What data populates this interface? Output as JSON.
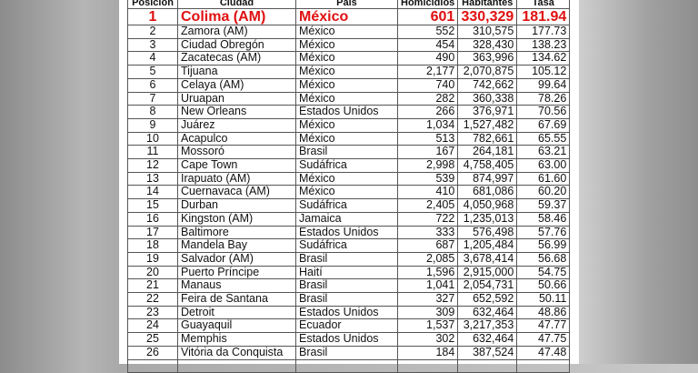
{
  "table": {
    "headers": [
      "Posición",
      "Ciudad",
      "País",
      "Homicidios",
      "Habitantes",
      "Tasa"
    ],
    "highlight_color": "#e01010",
    "rows": [
      [
        "1",
        "Colima (AM)",
        "México",
        "601",
        "330,329",
        "181.94"
      ],
      [
        "2",
        "Zamora (AM)",
        "México",
        "552",
        "310,575",
        "177.73"
      ],
      [
        "3",
        "Ciudad Obregón",
        "México",
        "454",
        "328,430",
        "138.23"
      ],
      [
        "4",
        "Zacatecas (AM)",
        "México",
        "490",
        "363,996",
        "134.62"
      ],
      [
        "5",
        "Tijuana",
        "México",
        "2,177",
        "2,070,875",
        "105.12"
      ],
      [
        "6",
        "Celaya (AM)",
        "México",
        "740",
        "742,662",
        "99.64"
      ],
      [
        "7",
        "Uruapan",
        "México",
        "282",
        "360,338",
        "78.26"
      ],
      [
        "8",
        "New Orleans",
        "Estados Unidos",
        "266",
        "376,971",
        "70.56"
      ],
      [
        "9",
        "Juárez",
        "México",
        "1,034",
        "1,527,482",
        "67.69"
      ],
      [
        "10",
        "Acapulco",
        "México",
        "513",
        "782,661",
        "65.55"
      ],
      [
        "11",
        "Mossoró",
        "Brasil",
        "167",
        "264,181",
        "63.21"
      ],
      [
        "12",
        "Cape Town",
        "Sudáfrica",
        "2,998",
        "4,758,405",
        "63.00"
      ],
      [
        "13",
        "Irapuato (AM)",
        "México",
        "539",
        "874,997",
        "61.60"
      ],
      [
        "14",
        "Cuernavaca (AM)",
        "México",
        "410",
        "681,086",
        "60.20"
      ],
      [
        "15",
        "Durban",
        "Sudáfrica",
        "2,405",
        "4,050,968",
        "59.37"
      ],
      [
        "16",
        "Kingston (AM)",
        "Jamaica",
        "722",
        "1,235,013",
        "58.46"
      ],
      [
        "17",
        "Baltimore",
        "Estados Unidos",
        "333",
        "576,498",
        "57.76"
      ],
      [
        "18",
        "Mandela Bay",
        "Sudáfrica",
        "687",
        "1,205,484",
        "56.99"
      ],
      [
        "19",
        "Salvador (AM)",
        "Brasil",
        "2,085",
        "3,678,414",
        "56.68"
      ],
      [
        "20",
        "Puerto Príncipe",
        "Haití",
        "1,596",
        "2,915,000",
        "54.75"
      ],
      [
        "21",
        "Manaus",
        "Brasil",
        "1,041",
        "2,054,731",
        "50.66"
      ],
      [
        "22",
        "Feira de Santana",
        "Brasil",
        "327",
        "652,592",
        "50.11"
      ],
      [
        "23",
        "Detroit",
        "Estados Unidos",
        "309",
        "632,464",
        "48.86"
      ],
      [
        "24",
        "Guayaquil",
        "Ecuador",
        "1,537",
        "3,217,353",
        "47.77"
      ],
      [
        "25",
        "Memphis",
        "Estados Unidos",
        "302",
        "632,464",
        "47.75"
      ],
      [
        "26",
        "Vitória da Conquista",
        "Brasil",
        "184",
        "387,524",
        "47.48"
      ]
    ]
  }
}
